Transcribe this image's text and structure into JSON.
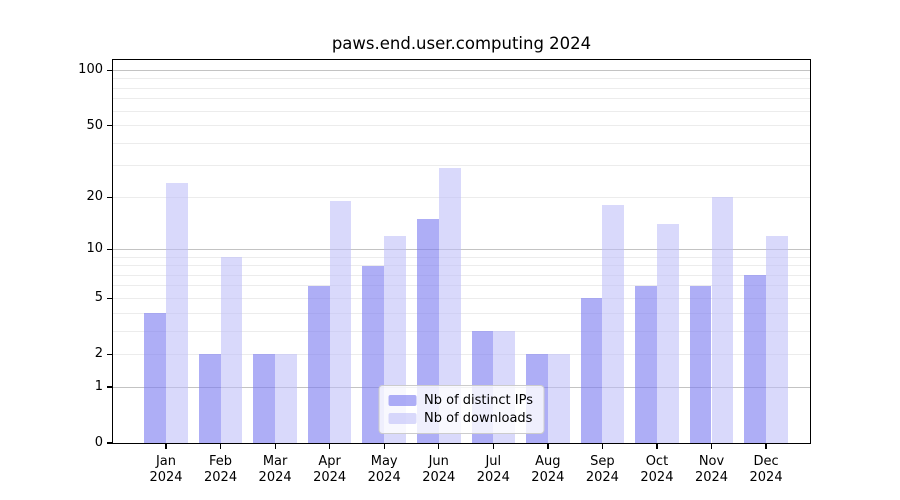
{
  "chart_data": {
    "type": "bar",
    "title": "paws.end.user.computing 2024",
    "categories": [
      "Jan",
      "Feb",
      "Mar",
      "Apr",
      "May",
      "Jun",
      "Jul",
      "Aug",
      "Sep",
      "Oct",
      "Nov",
      "Dec"
    ],
    "x_year_label": "2024",
    "series": [
      {
        "name": "Nb of distinct IPs",
        "color": "rgba(124,124,240,0.62)",
        "values": [
          4,
          2,
          2,
          6,
          8,
          15,
          3,
          2,
          5,
          6,
          6,
          7
        ]
      },
      {
        "name": "Nb of downloads",
        "color": "rgba(187,187,248,0.56)",
        "values": [
          24,
          9,
          2,
          19,
          12,
          29,
          3,
          2,
          18,
          14,
          20,
          12
        ]
      }
    ],
    "y_scale": "log1p",
    "y_max": 114,
    "y_ticks": [
      0,
      1,
      2,
      5,
      10,
      20,
      50,
      100
    ],
    "gridlines": {
      "major": [
        1,
        10,
        100
      ],
      "minor": [
        2,
        3,
        4,
        5,
        6,
        7,
        8,
        9,
        20,
        30,
        40,
        50,
        60,
        70,
        80,
        90
      ],
      "major_color": "#c3c3c3",
      "minor_color": "#ececec"
    },
    "grid": true,
    "legend_position": "lower center",
    "axis_color": "#000000",
    "background_color": "#ffffff"
  }
}
